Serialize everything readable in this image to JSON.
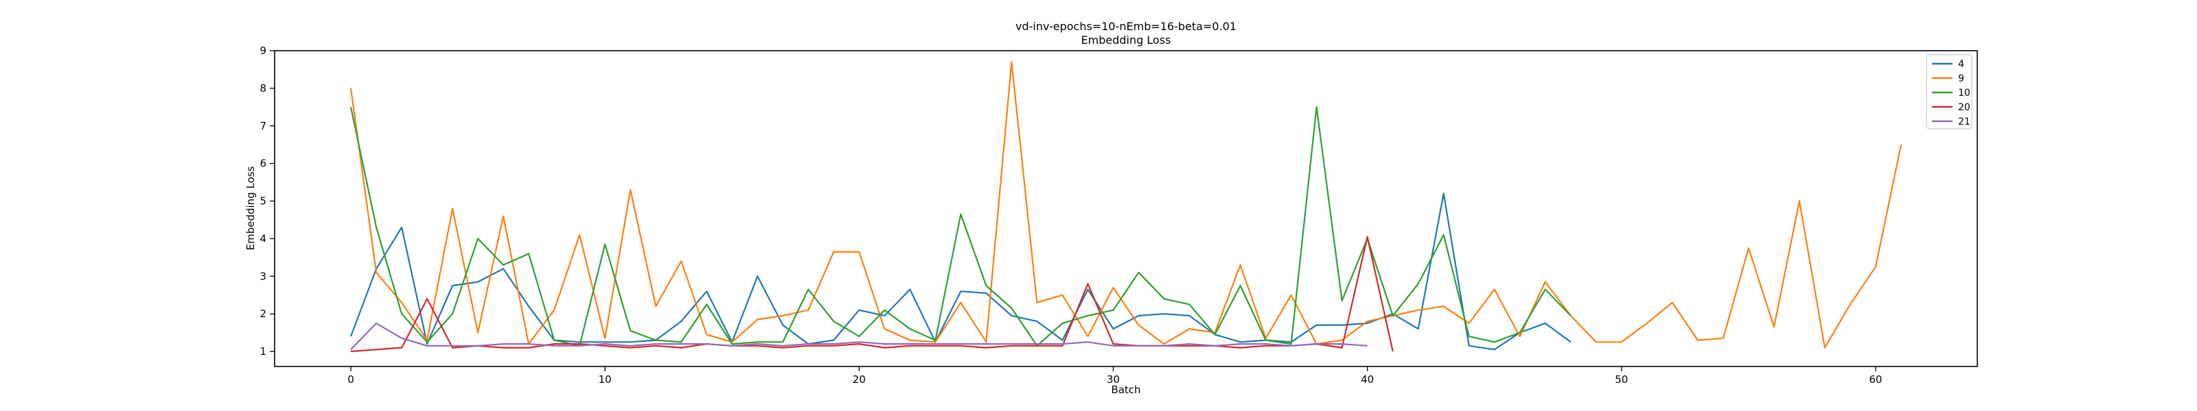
{
  "chart_data": {
    "type": "line",
    "title": "vd-inv-epochs=10-nEmb=16-beta=0.01",
    "subtitle": "Embedding Loss",
    "xlabel": "Batch",
    "ylabel": "Embedding Loss",
    "xlim": [
      -3,
      64
    ],
    "ylim": [
      0.6,
      9.0
    ],
    "xticks": [
      0,
      10,
      20,
      30,
      40,
      50,
      60
    ],
    "yticks": [
      1,
      2,
      3,
      4,
      5,
      6,
      7,
      8,
      9
    ],
    "grid": false,
    "legend_position": "top-right",
    "series": [
      {
        "name": "4",
        "color": "#1f77b4",
        "values": [
          1.4,
          3.2,
          4.3,
          1.2,
          2.75,
          2.85,
          3.2,
          2.2,
          1.3,
          1.25,
          1.25,
          1.25,
          1.3,
          1.8,
          2.6,
          1.25,
          3.0,
          1.7,
          1.2,
          1.3,
          2.1,
          1.95,
          2.65,
          1.25,
          2.6,
          2.55,
          1.95,
          1.8,
          1.3,
          2.65,
          1.6,
          1.95,
          2.0,
          1.95,
          1.45,
          1.25,
          1.3,
          1.25,
          1.7,
          1.7,
          1.75,
          2.0,
          1.6,
          5.2,
          1.15,
          1.05,
          1.5,
          1.75,
          1.25
        ]
      },
      {
        "name": "9",
        "color": "#ff7f0e",
        "values": [
          8.0,
          3.1,
          2.3,
          1.3,
          4.8,
          1.5,
          4.6,
          1.2,
          2.1,
          4.1,
          1.35,
          5.3,
          2.2,
          3.4,
          1.45,
          1.25,
          1.85,
          1.95,
          2.1,
          3.65,
          3.65,
          1.6,
          1.3,
          1.25,
          2.3,
          1.25,
          8.7,
          2.3,
          2.5,
          1.4,
          2.7,
          1.7,
          1.2,
          1.6,
          1.5,
          3.3,
          1.35,
          2.5,
          1.2,
          1.3,
          1.8,
          1.95,
          2.1,
          2.2,
          1.75,
          2.65,
          1.4,
          2.85,
          1.95,
          1.25,
          1.25,
          1.75,
          2.3,
          1.3,
          1.35,
          3.75,
          1.65,
          5.0,
          1.1,
          2.25,
          3.25,
          6.5
        ]
      },
      {
        "name": "10",
        "color": "#2ca02c",
        "values": [
          7.5,
          4.3,
          2.0,
          1.25,
          2.0,
          4.0,
          3.3,
          3.6,
          1.3,
          1.15,
          3.85,
          1.55,
          1.3,
          1.25,
          2.25,
          1.2,
          1.25,
          1.25,
          2.65,
          1.8,
          1.4,
          2.1,
          1.6,
          1.3,
          4.65,
          2.75,
          2.15,
          1.15,
          1.75,
          1.95,
          2.1,
          3.1,
          2.4,
          2.25,
          1.45,
          2.75,
          1.3,
          1.2,
          7.5,
          2.35,
          4.0,
          1.95,
          2.8,
          4.1,
          1.4,
          1.25,
          1.5,
          2.65,
          1.95
        ]
      },
      {
        "name": "20",
        "color": "#d62728",
        "values": [
          1.0,
          1.05,
          1.1,
          2.4,
          1.1,
          1.15,
          1.1,
          1.1,
          1.2,
          1.2,
          1.15,
          1.1,
          1.15,
          1.1,
          1.2,
          1.15,
          1.15,
          1.1,
          1.15,
          1.15,
          1.2,
          1.1,
          1.15,
          1.15,
          1.15,
          1.1,
          1.15,
          1.15,
          1.15,
          2.8,
          1.2,
          1.15,
          1.15,
          1.15,
          1.15,
          1.1,
          1.15,
          1.15,
          1.2,
          1.1,
          4.05,
          1.0
        ]
      },
      {
        "name": "21",
        "color": "#9467bd",
        "values": [
          1.05,
          1.75,
          1.35,
          1.15,
          1.15,
          1.15,
          1.2,
          1.2,
          1.15,
          1.15,
          1.2,
          1.15,
          1.2,
          1.2,
          1.2,
          1.15,
          1.2,
          1.15,
          1.2,
          1.2,
          1.25,
          1.2,
          1.2,
          1.2,
          1.2,
          1.2,
          1.2,
          1.2,
          1.2,
          1.25,
          1.15,
          1.15,
          1.15,
          1.2,
          1.15,
          1.2,
          1.2,
          1.15,
          1.2,
          1.2,
          1.15
        ]
      }
    ]
  }
}
